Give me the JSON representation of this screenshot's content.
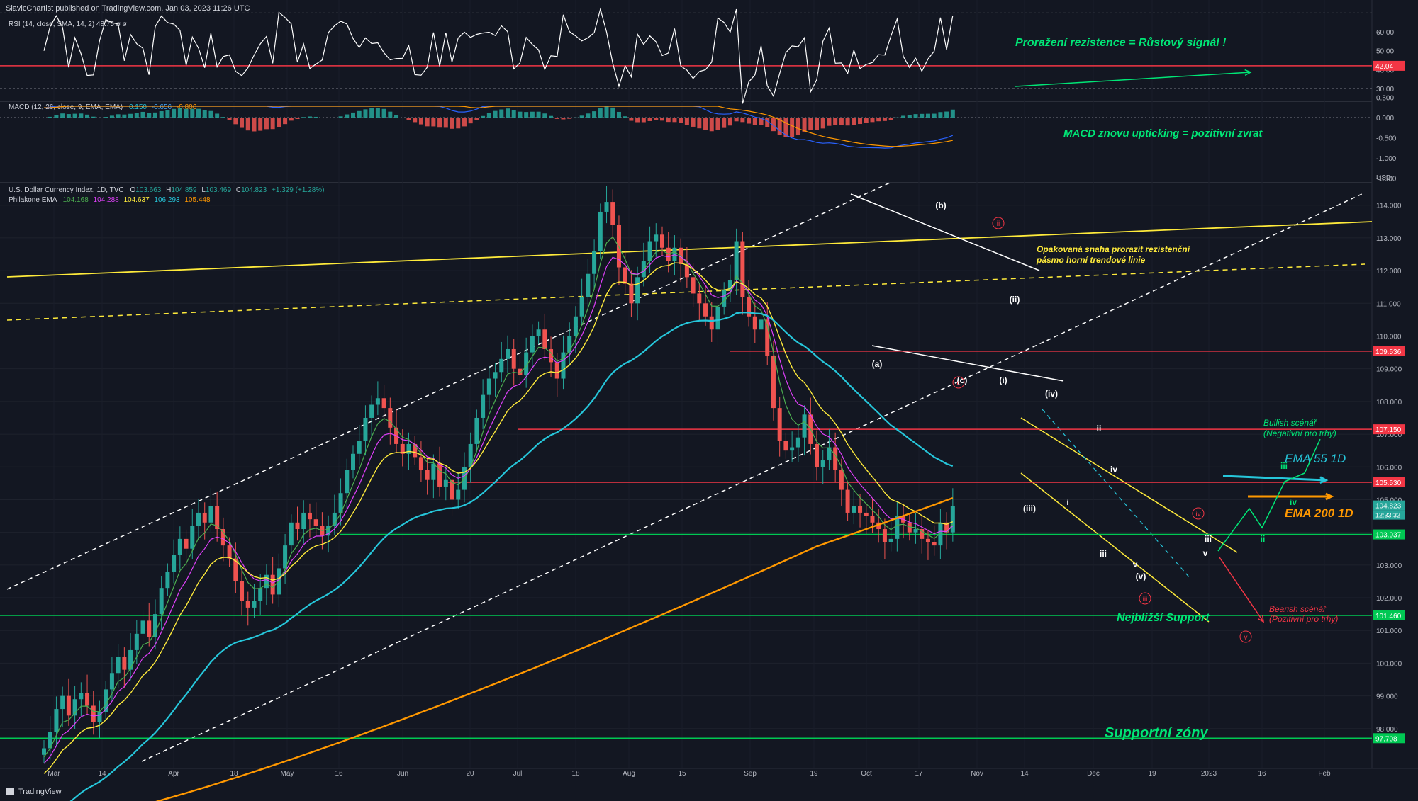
{
  "header": {
    "published": "SlavicChartist published on TradingView.com, Jan 03, 2023 11:26 UTC"
  },
  "footer": {
    "brand": "TradingView"
  },
  "colors": {
    "background": "#131722",
    "up": "#26a69a",
    "down": "#ef5350",
    "ema_green": "#4caf50",
    "ema_purple": "#e040fb",
    "ema_yellow": "#ffeb3b",
    "ema_cyan": "#26c6da",
    "ema_orange": "#ff9800",
    "annotation_green": "#00e676",
    "resistance_red": "#f23645",
    "support_green": "#00c853"
  },
  "panes": {
    "rsi": {
      "legend": "RSI (14, close, SMA, 14, 2)  48.75  ø  ø",
      "ticks": [
        "60.00",
        "50.00",
        "40.00",
        "30.00"
      ],
      "level_label": "42.04",
      "annotation": "Proražení rezistence = Růstový signál !"
    },
    "macd": {
      "legend_name": "MACD (12, 26, close, 9, EMA, EMA)",
      "legend_values": [
        "0.150",
        "-0.656",
        "-0.806"
      ],
      "ticks": [
        "0.500",
        "0.000",
        "-0.500",
        "-1.000",
        "-1.500"
      ],
      "annotation": "MACD znovu upticking = pozitivní zvrat"
    },
    "main": {
      "legend_title": "U.S. Dollar Currency Index, 1D, TVC",
      "legend_ohlc": {
        "O": "103.663",
        "H": "104.859",
        "L": "103.469",
        "C": "104.823",
        "change": "+1.329 (+1.28%)"
      },
      "ema_legend_name": "Philakone EMA",
      "ema_values": [
        "104.168",
        "104.288",
        "104.637",
        "106.293",
        "105.448"
      ],
      "currency": "USD"
    }
  },
  "chart_data": {
    "type": "candlestick",
    "title": "U.S. Dollar Currency Index, 1D, TVC",
    "ylabel": "USD",
    "ylim": [
      97.0,
      114.6
    ],
    "y_ticks": [
      "114.000",
      "113.000",
      "112.000",
      "111.000",
      "110.000",
      "109.000",
      "108.000",
      "107.000",
      "106.000",
      "105.000",
      "104.000",
      "103.000",
      "102.000",
      "101.000",
      "100.000",
      "99.000",
      "98.000"
    ],
    "x_ticks": [
      "Mar",
      "14",
      "Apr",
      "18",
      "May",
      "16",
      "Jun",
      "20",
      "Jul",
      "18",
      "Aug",
      "15",
      "Sep",
      "19",
      "Oct",
      "17",
      "Nov",
      "14",
      "Dec",
      "19",
      "2023",
      "16",
      "Feb"
    ],
    "price_labels": [
      {
        "value": 109.536,
        "label": "109.536",
        "color": "#f23645"
      },
      {
        "value": 107.15,
        "label": "107.150",
        "color": "#f23645"
      },
      {
        "value": 105.53,
        "label": "105.530",
        "color": "#f23645"
      },
      {
        "value": 104.823,
        "label": "104.823",
        "color": "#26a69a"
      },
      {
        "value": 103.937,
        "label": "103.937",
        "color": "#00c853"
      },
      {
        "value": 101.46,
        "label": "101.460",
        "color": "#00c853"
      },
      {
        "value": 97.708,
        "label": "97.708",
        "color": "#00c853"
      }
    ],
    "countdown": "12:33:32",
    "close_series": [
      97.4,
      97.9,
      98.6,
      99.0,
      98.4,
      98.9,
      99.1,
      98.7,
      98.2,
      98.5,
      99.2,
      99.7,
      100.2,
      99.8,
      100.4,
      100.9,
      101.3,
      100.8,
      101.5,
      102.3,
      102.8,
      103.3,
      103.8,
      103.5,
      104.2,
      104.6,
      104.3,
      104.8,
      104.1,
      103.6,
      103.2,
      102.5,
      101.9,
      101.7,
      101.9,
      102.3,
      102.7,
      102.1,
      102.9,
      103.6,
      104.3,
      104.1,
      104.6,
      104.4,
      104.2,
      103.9,
      104.2,
      104.6,
      105.2,
      105.9,
      106.4,
      106.8,
      107.5,
      107.9,
      108.1,
      107.8,
      107.2,
      106.7,
      106.4,
      106.7,
      106.3,
      105.9,
      105.6,
      106.1,
      105.4,
      105.6,
      105.0,
      105.3,
      106.0,
      106.7,
      107.5,
      108.2,
      108.7,
      108.9,
      109.3,
      109.6,
      109.0,
      108.8,
      109.5,
      110.0,
      110.2,
      109.6,
      109.2,
      108.7,
      109.5,
      110.0,
      110.6,
      111.2,
      111.9,
      112.6,
      113.8,
      114.1,
      113.4,
      112.1,
      111.6,
      111.0,
      111.8,
      112.3,
      112.9,
      113.1,
      112.7,
      112.3,
      112.7,
      112.2,
      111.8,
      111.3,
      111.0,
      110.6,
      110.2,
      110.9,
      111.4,
      111.7,
      112.9,
      111.2,
      110.6,
      110.2,
      110.5,
      109.4,
      107.8,
      106.8,
      106.5,
      106.6,
      106.9,
      107.6,
      106.7,
      106.0,
      106.2,
      106.6,
      105.9,
      105.3,
      104.6,
      104.8,
      104.6,
      104.5,
      104.3,
      104.1,
      103.7,
      103.8,
      104.5,
      104.3,
      104.0,
      104.1,
      103.8,
      103.7,
      103.6,
      104.3,
      104.0,
      104.8
    ],
    "series": [
      {
        "name": "EMA 55 1D",
        "color": "#26c6da"
      },
      {
        "name": "EMA 200 1D",
        "color": "#ff9800"
      }
    ],
    "waves": [
      "(a)",
      "(b)",
      "(c)",
      "(i)",
      "(ii)",
      "(iii)",
      "(iv)",
      "(v)",
      "i",
      "ii",
      "iii",
      "iv",
      "v",
      "iii",
      "iv",
      "ii",
      "iii",
      "v"
    ],
    "circled_labels": [
      "ii",
      "c",
      "iii",
      "v",
      "iv"
    ],
    "annotations": {
      "resistance_note_1": "Opakovaná snaha prorazit rezistenční",
      "resistance_note_2": "pásmo horní trendové linie",
      "bullish_1": "Bullish scénář",
      "bullish_2": "(Negativní pro trhy)",
      "bearish_1": "Bearish scénář",
      "bearish_2": "(Pozitivní pro trhy)",
      "ema55": "EMA 55 1D",
      "ema200": "EMA 200 1D",
      "nearest_support": "Nejbližší Support",
      "support_zones": "Supportní zóny"
    }
  }
}
